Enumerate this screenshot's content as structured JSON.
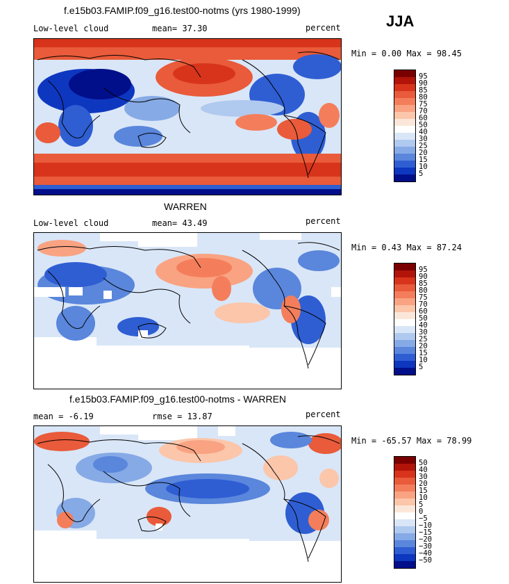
{
  "season": "JJA",
  "panels": [
    {
      "title": "f.e15b03.FAMIP.f09_g16.test00-notms (yrs 1980-1999)",
      "left_label": "Low-level cloud",
      "mid_label": "mean=  37.30",
      "right_label": "percent",
      "range_text": "Min =   0.00 Max =  98.45",
      "mean": 37.3,
      "min": 0.0,
      "max": 98.45,
      "colorbar_labels": [
        "95",
        "90",
        "85",
        "80",
        "75",
        "70",
        "60",
        "50",
        "40",
        "30",
        "25",
        "20",
        "15",
        "10",
        "5"
      ]
    },
    {
      "title": "WARREN",
      "left_label": "Low-level cloud",
      "mid_label": "mean=  43.49",
      "right_label": "percent",
      "range_text": "Min =   0.43 Max =  87.24",
      "mean": 43.49,
      "min": 0.43,
      "max": 87.24,
      "colorbar_labels": [
        "95",
        "90",
        "85",
        "80",
        "75",
        "70",
        "60",
        "50",
        "40",
        "30",
        "25",
        "20",
        "15",
        "10",
        "5"
      ]
    },
    {
      "title": "f.e15b03.FAMIP.f09_g16.test00-notms - WARREN",
      "left_label": "mean =  -6.19",
      "mid_label": "rmse =  13.87",
      "right_label": "percent",
      "range_text": "Min = -65.57 Max =  78.99",
      "mean": -6.19,
      "rmse": 13.87,
      "min": -65.57,
      "max": 78.99,
      "colorbar_labels": [
        "50",
        "40",
        "30",
        "20",
        "15",
        "10",
        "5",
        "0",
        "−5",
        "−10",
        "−15",
        "−20",
        "−30",
        "−40",
        "−50"
      ]
    }
  ],
  "colors": {
    "scale": [
      "#7a0000",
      "#b2140a",
      "#d8341b",
      "#e95b3a",
      "#f47e5b",
      "#f9a383",
      "#fbc6aa",
      "#fbe7d9",
      "#ffffff",
      "#d9e6f7",
      "#b0c9ef",
      "#86aae6",
      "#5a86dc",
      "#2f5ed3",
      "#0e37c0",
      "#020f8a"
    ],
    "coast": "#000000",
    "missing": "#ffffff"
  }
}
